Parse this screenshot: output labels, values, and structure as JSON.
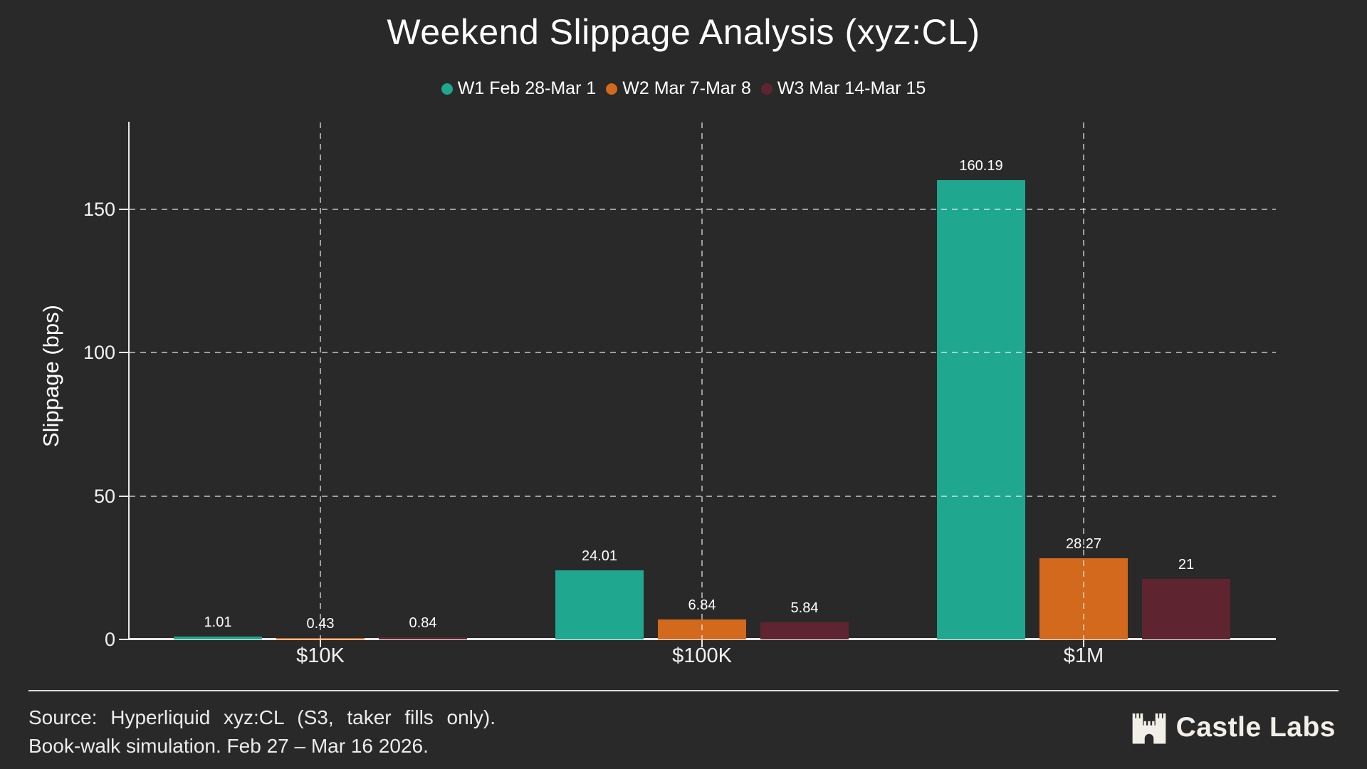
{
  "chart_data": {
    "type": "bar",
    "title": "Weekend Slippage Analysis (xyz:CL)",
    "categories": [
      "$10K",
      "$100K",
      "$1M"
    ],
    "series": [
      {
        "name": "W1 Feb 28-Mar 1",
        "color": "#1fa78f",
        "values": [
          1.01,
          24.01,
          160.19
        ],
        "labels": [
          "1.01",
          "24.01",
          "160.19"
        ]
      },
      {
        "name": "W2 Mar 7-Mar 8",
        "color": "#d2691c",
        "values": [
          0.43,
          6.84,
          28.27
        ],
        "labels": [
          "0.43",
          "6.84",
          "28.27"
        ]
      },
      {
        "name": "W3 Mar 14-Mar 15",
        "color": "#5e2531",
        "values": [
          0.84,
          5.84,
          21
        ],
        "labels": [
          "0.84",
          "5.84",
          "21"
        ]
      }
    ],
    "xlabel": "",
    "ylabel": "Slippage (bps)",
    "yticks": [
      0,
      50,
      100,
      150
    ],
    "ylim": [
      0,
      180
    ],
    "grid": "dashed-both-axes",
    "legend_position": "top center"
  },
  "footer": {
    "source_line1": "Source: Hyperliquid xyz:CL (S3, taker fills only).",
    "source_line2": "Book-walk simulation. Feb 27 – Mar 16 2026.",
    "brand": "Castle Labs"
  },
  "colors": {
    "background": "#292929",
    "text": "#ffffff",
    "axis": "#e8e8e8",
    "grid": "#ffffff",
    "footer_text": "#ebebeb",
    "brand": "#f2efe8",
    "series_teal": "#1fa78f",
    "series_orange": "#d2691c",
    "series_maroon": "#5e2531"
  }
}
